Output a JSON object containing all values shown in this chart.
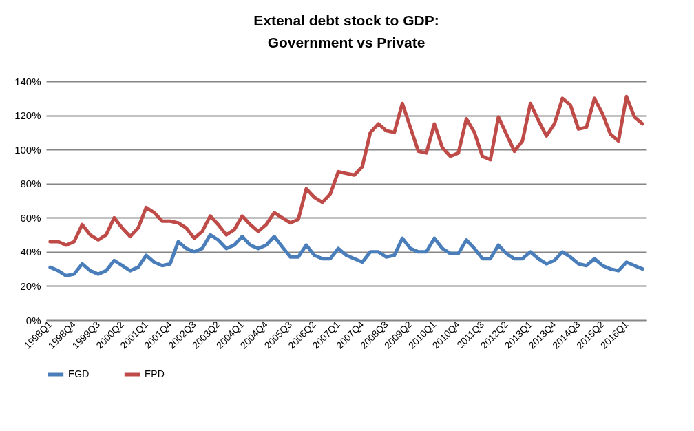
{
  "chart_data": {
    "type": "line",
    "title": "Extenal debt stock to GDP:\nGovernment vs Private",
    "categories": [
      "1998Q1",
      null,
      null,
      "1998Q4",
      null,
      null,
      "1999Q3",
      null,
      null,
      "2000Q2",
      null,
      null,
      "2001Q1",
      null,
      null,
      "2001Q4",
      null,
      null,
      "2002Q3",
      null,
      null,
      "2003Q2",
      null,
      null,
      "2004Q1",
      null,
      null,
      "2004Q4",
      null,
      null,
      "2005Q3",
      null,
      null,
      "2006Q2",
      null,
      null,
      "2007Q1",
      null,
      null,
      "2007Q4",
      null,
      null,
      "2008Q3",
      null,
      null,
      "2009Q2",
      null,
      null,
      "2010Q1",
      null,
      null,
      "2010Q4",
      null,
      null,
      "2011Q3",
      null,
      null,
      "2012Q2",
      null,
      null,
      "2013Q1",
      null,
      null,
      "2013Q4",
      null,
      null,
      "2014Q3",
      null,
      null,
      "2015Q2",
      null,
      null,
      "2016Q1",
      null,
      null
    ],
    "series": [
      {
        "name": "EGD",
        "color": "#4a7ebb",
        "values": [
          31,
          29,
          26,
          27,
          33,
          29,
          27,
          29,
          35,
          32,
          29,
          31,
          38,
          34,
          32,
          33,
          46,
          42,
          40,
          42,
          50,
          47,
          42,
          44,
          49,
          44,
          42,
          44,
          49,
          43,
          37,
          37,
          44,
          38,
          36,
          36,
          42,
          38,
          36,
          34,
          40,
          40,
          37,
          38,
          48,
          42,
          40,
          40,
          48,
          42,
          39,
          39,
          47,
          42,
          36,
          36,
          44,
          39,
          36,
          36,
          40,
          36,
          33,
          35,
          40,
          37,
          33,
          32,
          36,
          32,
          30,
          29,
          34,
          32,
          30
        ]
      },
      {
        "name": "EPD",
        "color": "#be4b48",
        "values": [
          46,
          46,
          44,
          46,
          56,
          50,
          47,
          50,
          60,
          54,
          49,
          54,
          66,
          63,
          58,
          58,
          57,
          54,
          48,
          52,
          61,
          56,
          50,
          53,
          61,
          56,
          52,
          56,
          63,
          60,
          57,
          59,
          77,
          72,
          69,
          74,
          87,
          86,
          85,
          90,
          110,
          115,
          111,
          110,
          127,
          113,
          99,
          98,
          115,
          101,
          96,
          98,
          118,
          110,
          96,
          94,
          119,
          109,
          99,
          105,
          127,
          117,
          108,
          115,
          130,
          126,
          112,
          113,
          130,
          121,
          109,
          105,
          131,
          119,
          115
        ]
      }
    ],
    "ylim": [
      0,
      140
    ],
    "yticks": [
      {
        "value": 0,
        "label": "0%"
      },
      {
        "value": 20,
        "label": "20%"
      },
      {
        "value": 40,
        "label": "40%"
      },
      {
        "value": 60,
        "label": "60%"
      },
      {
        "value": 80,
        "label": "80%"
      },
      {
        "value": 100,
        "label": "100%"
      },
      {
        "value": 120,
        "label": "120%"
      },
      {
        "value": 140,
        "label": "140%"
      }
    ],
    "grid": "y",
    "legend": "bottom",
    "marker": "none",
    "line_style": "solid"
  }
}
